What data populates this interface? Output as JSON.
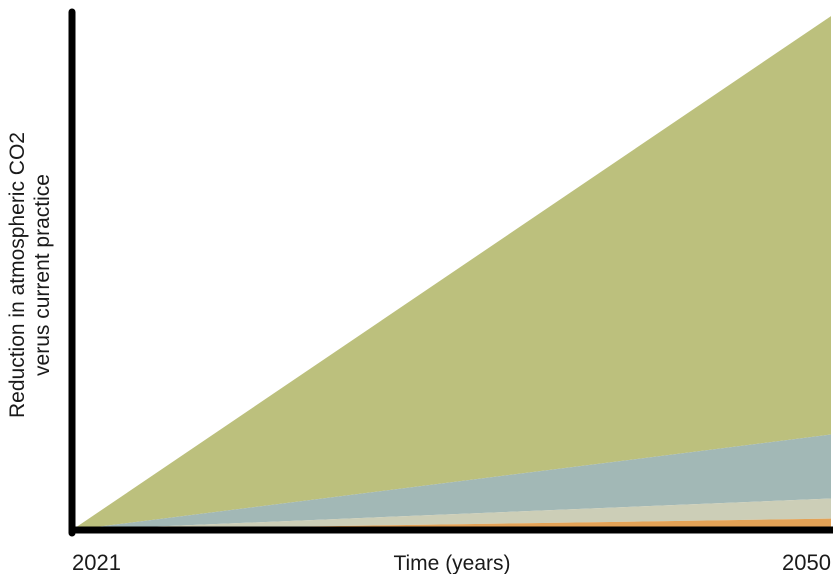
{
  "chart_data": {
    "type": "area",
    "stacked": true,
    "title": "",
    "xlabel": "Time (years)",
    "ylabel_lines": [
      "Reduction in atmospheric CO2",
      "verus current practice"
    ],
    "x": [
      2021,
      2050
    ],
    "x_tick_labels": [
      "2021",
      "2050"
    ],
    "xlim": [
      2021,
      2050
    ],
    "ylim": [
      0,
      100
    ],
    "y_ticks_shown": false,
    "grid": false,
    "legend": "none",
    "series": [
      {
        "values": [
          0,
          2.2
        ],
        "color": "#e3a256"
      },
      {
        "values": [
          0,
          3.9
        ],
        "color": "#ccceb7"
      },
      {
        "values": [
          0,
          12.4
        ],
        "color": "#a2b8b6"
      },
      {
        "values": [
          0,
          81.1
        ],
        "color": "#bcc07d"
      }
    ]
  }
}
